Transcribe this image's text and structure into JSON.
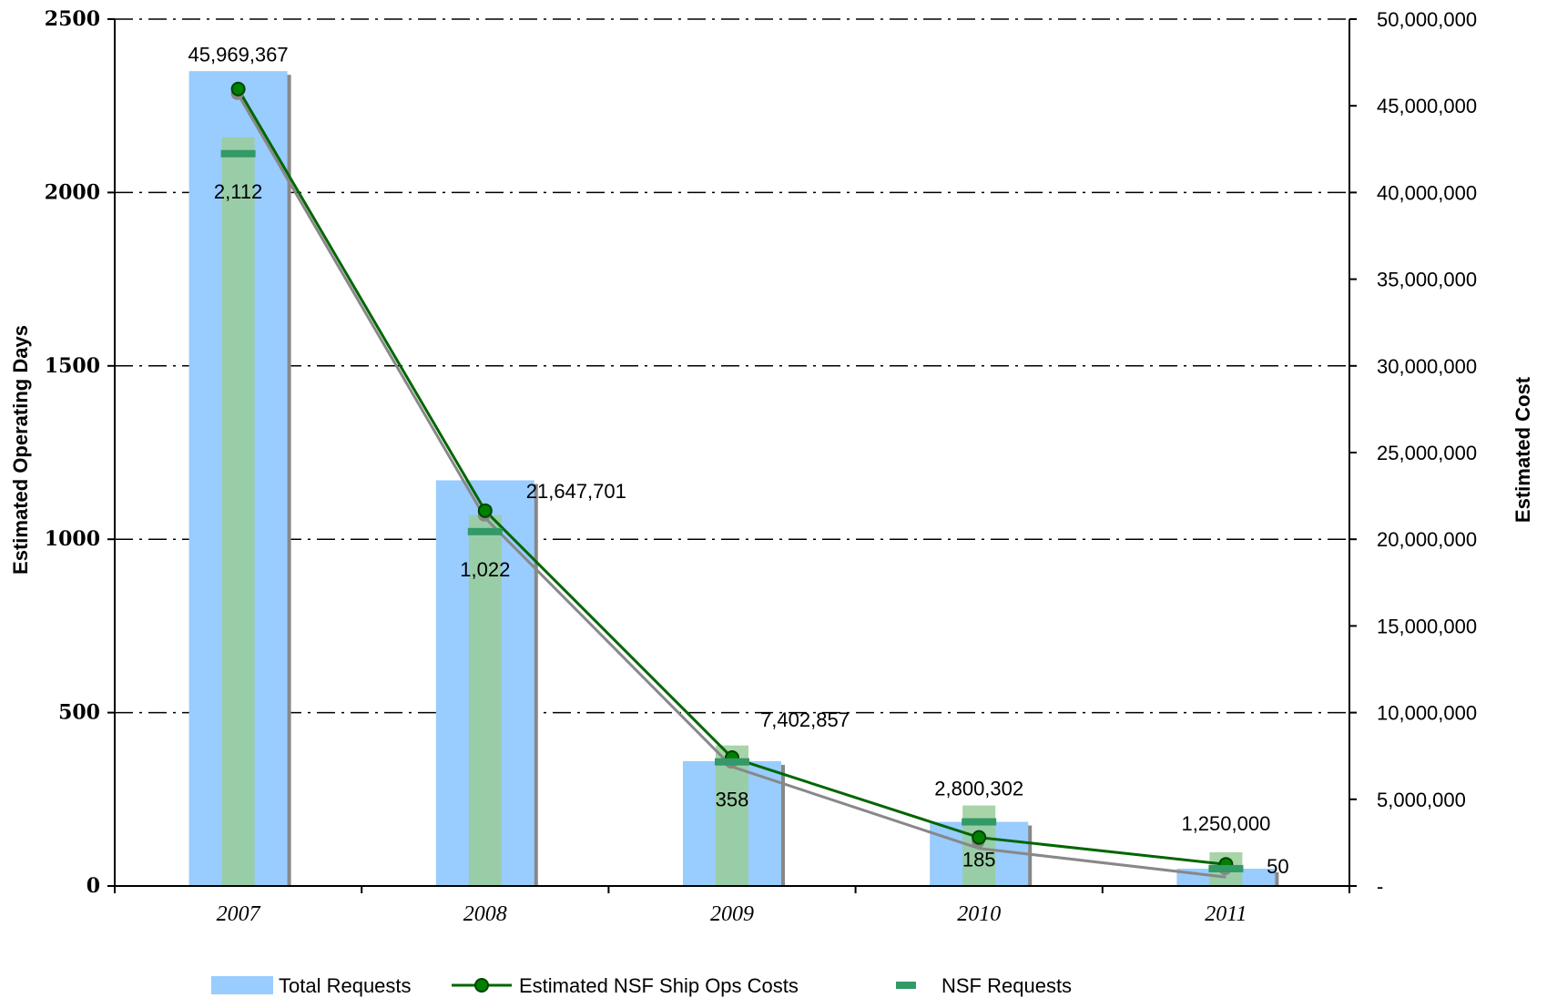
{
  "chart_data": {
    "type": "bar",
    "categories": [
      "2007",
      "2008",
      "2009",
      "2010",
      "2011"
    ],
    "series": [
      {
        "name": "Total Requests",
        "kind": "bar",
        "axis": "left",
        "color": "#99ccff",
        "values": [
          2350,
          1170,
          360,
          185,
          50
        ]
      },
      {
        "name": "NSF Requests",
        "kind": "marker",
        "axis": "left",
        "color": "#339966",
        "values": [
          2112,
          1022,
          358,
          185,
          50
        ],
        "value_labels": [
          "2,112",
          "1,022",
          "358",
          "185",
          "50"
        ]
      },
      {
        "name": "Estimated NSF Ship Ops Costs",
        "kind": "line",
        "axis": "right",
        "color": "#006600",
        "values": [
          45969367,
          21647701,
          7402857,
          2800302,
          1250000
        ],
        "value_labels": [
          "45,969,367",
          "21,647,701",
          "7,402,857",
          "2,800,302",
          "1,250,000"
        ]
      }
    ],
    "y_left": {
      "label": "Estimated Operating Days",
      "ylim": [
        0,
        2500
      ],
      "ticks": [
        0,
        500,
        1000,
        1500,
        2000,
        2500
      ],
      "tick_labels": [
        "0",
        "500",
        "1000",
        "1500",
        "2000",
        "2500"
      ]
    },
    "y_right": {
      "label": "Estimated Cost",
      "ylim": [
        0,
        50000000
      ],
      "ticks": [
        0,
        5000000,
        10000000,
        15000000,
        20000000,
        25000000,
        30000000,
        35000000,
        40000000,
        45000000,
        50000000
      ],
      "tick_labels": [
        "-",
        "5,000,000",
        "10,000,000",
        "15,000,000",
        "20,000,000",
        "25,000,000",
        "30,000,000",
        "35,000,000",
        "40,000,000",
        "45,000,000",
        "50,000,000"
      ]
    },
    "xlabel": "",
    "grid": "horizontal dash-dot",
    "legend": {
      "position": "bottom",
      "entries": [
        "Total Requests",
        "Estimated NSF Ship Ops Costs",
        "NSF Requests"
      ]
    }
  }
}
